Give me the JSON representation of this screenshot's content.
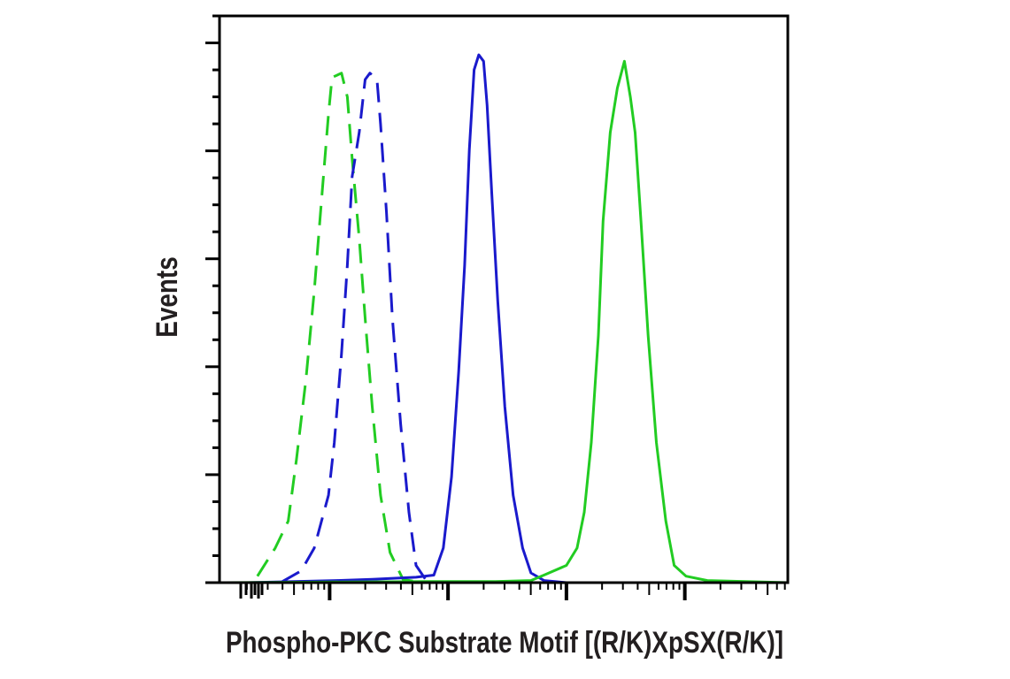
{
  "chart_data": {
    "type": "line",
    "title": "",
    "xlabel": "Phospho-PKC Substrate Motif [(R/K)XpSX(R/K)]",
    "ylabel": "Events",
    "x_scale": "log10 (biexponential)",
    "xlim": [
      1.07,
      5.87
    ],
    "ylim": [
      0,
      5.25
    ],
    "x_major_ticks": [
      2,
      3,
      4,
      5
    ],
    "y_major_ticks": [
      0,
      1,
      2,
      3,
      4,
      5
    ],
    "tick_labels_shown": false,
    "grid": false,
    "legend": "none",
    "series": [
      {
        "color": "#22cc22",
        "dash": "dashed",
        "x": [
          1.39,
          1.54,
          1.65,
          1.72,
          1.8,
          1.87,
          1.93,
          1.99,
          2.02,
          2.06,
          2.1,
          2.15,
          2.19,
          2.25,
          2.3,
          2.36,
          2.43,
          2.51,
          2.62,
          2.73
        ],
        "y": [
          0.06,
          0.32,
          0.57,
          1.14,
          1.88,
          2.7,
          3.52,
          4.34,
          4.68,
          4.7,
          4.72,
          4.5,
          3.93,
          3.19,
          2.45,
          1.63,
          0.81,
          0.28,
          0.03,
          0.01
        ]
      },
      {
        "color": "#1a1acc",
        "dash": "dashed",
        "x": [
          1.6,
          1.76,
          1.87,
          1.99,
          2.04,
          2.1,
          2.15,
          2.19,
          2.25,
          2.3,
          2.34,
          2.4,
          2.43,
          2.48,
          2.53,
          2.6,
          2.67,
          2.73,
          2.81
        ],
        "y": [
          0.01,
          0.11,
          0.32,
          0.81,
          1.3,
          2.12,
          2.94,
          3.76,
          4.17,
          4.66,
          4.72,
          4.66,
          4.25,
          3.43,
          2.45,
          1.47,
          0.65,
          0.16,
          0.03
        ]
      },
      {
        "color": "#1a1acc",
        "dash": "solid",
        "x": [
          1.31,
          2.06,
          2.36,
          2.73,
          2.88,
          2.96,
          3.03,
          3.09,
          3.14,
          3.18,
          3.22,
          3.26,
          3.3,
          3.33,
          3.37,
          3.42,
          3.48,
          3.55,
          3.63,
          3.7,
          3.81,
          4.0,
          5.87
        ],
        "y": [
          0,
          0.02,
          0.03,
          0.05,
          0.07,
          0.32,
          0.98,
          1.96,
          2.94,
          4.01,
          4.75,
          4.89,
          4.83,
          4.42,
          3.6,
          2.61,
          1.63,
          0.81,
          0.32,
          0.09,
          0.02,
          0,
          0
        ]
      },
      {
        "color": "#22cc22",
        "dash": "solid",
        "x": [
          1.07,
          2.81,
          3.4,
          3.7,
          3.81,
          4.0,
          4.09,
          4.15,
          4.21,
          4.27,
          4.31,
          4.37,
          4.43,
          4.49,
          4.54,
          4.58,
          4.63,
          4.69,
          4.76,
          4.84,
          4.91,
          5.01,
          5.19,
          5.87
        ],
        "y": [
          0,
          0.01,
          0.01,
          0.02,
          0.07,
          0.16,
          0.32,
          0.65,
          1.3,
          2.29,
          3.35,
          4.17,
          4.58,
          4.83,
          4.5,
          4.17,
          3.35,
          2.29,
          1.3,
          0.57,
          0.16,
          0.06,
          0.02,
          0
        ]
      }
    ]
  }
}
